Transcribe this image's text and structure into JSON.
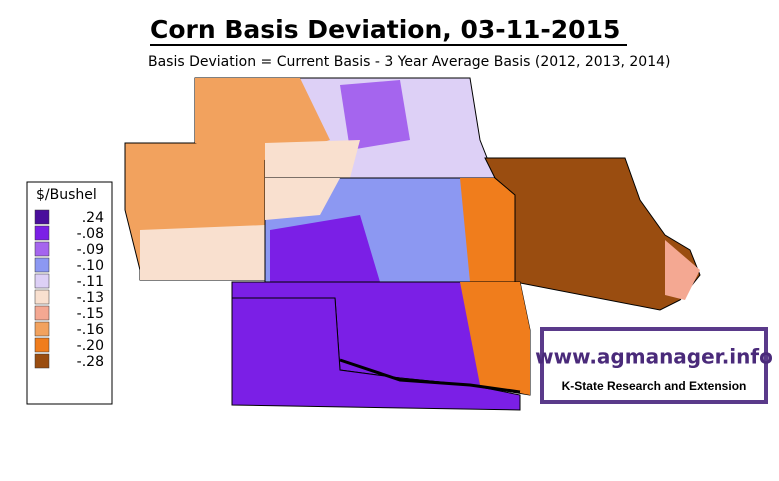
{
  "header": {
    "title": "Corn Basis Deviation, 03-11-2015",
    "subtitle": "Basis Deviation = Current Basis - 3 Year Average Basis (2012, 2013, 2014)"
  },
  "legend": {
    "title": "$/Bushel",
    "items": [
      {
        "label": ".24",
        "color": "#4a0e9c"
      },
      {
        "label": "-.08",
        "color": "#7b1fe6"
      },
      {
        "label": "-.09",
        "color": "#a565ee"
      },
      {
        "label": "-.10",
        "color": "#8c98f2"
      },
      {
        "label": "-.11",
        "color": "#ddd0f6"
      },
      {
        "label": "-.13",
        "color": "#f9e0cf"
      },
      {
        "label": "-.15",
        "color": "#f4a892"
      },
      {
        "label": "-.16",
        "color": "#f2a25e"
      },
      {
        "label": "-.20",
        "color": "#f07d1c"
      },
      {
        "label": "-.28",
        "color": "#9a4d10"
      }
    ]
  },
  "logo": {
    "url": "www.agmanager.info",
    "tagline": "K-State Research and Extension"
  }
}
